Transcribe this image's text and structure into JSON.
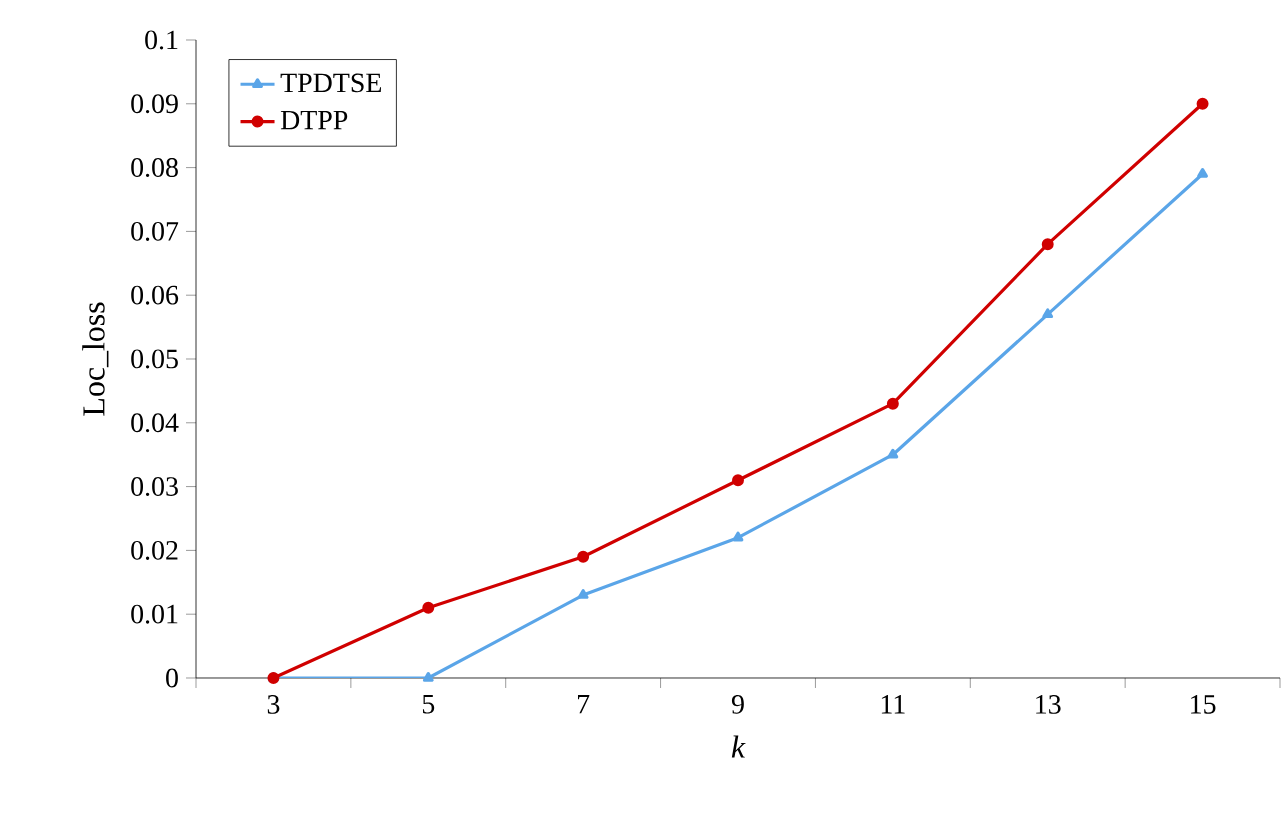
{
  "chart_data": {
    "type": "line",
    "xlabel": "k",
    "ylabel": "Loc_loss",
    "categories": [
      "3",
      "5",
      "7",
      "9",
      "11",
      "13",
      "15"
    ],
    "series": [
      {
        "name": "TPDTSE",
        "color": "#5aa5e8",
        "marker": "triangle",
        "values": [
          0,
          0,
          0.013,
          0.022,
          0.035,
          0.057,
          0.079
        ]
      },
      {
        "name": "DTPP",
        "color": "#d00000",
        "marker": "circle",
        "values": [
          0,
          0.011,
          0.019,
          0.031,
          0.043,
          0.068,
          0.09
        ]
      }
    ],
    "ylim": [
      0,
      0.1
    ],
    "yticks": [
      0,
      0.01,
      0.02,
      0.03,
      0.04,
      0.05,
      0.06,
      0.07,
      0.08,
      0.09,
      0.1
    ],
    "grid": false,
    "legend": "top left",
    "line_style": "solid"
  }
}
